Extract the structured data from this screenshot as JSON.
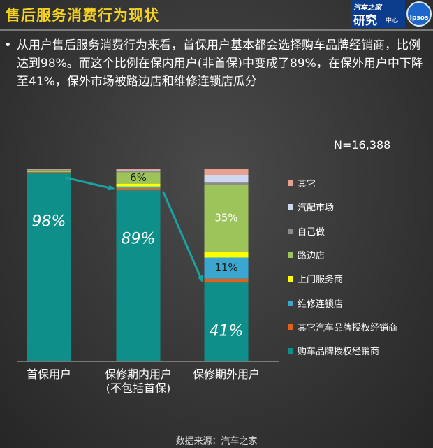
{
  "header": {
    "title": "售后服务消费行为现状",
    "logo_top": "汽车之家",
    "logo_main": "研究",
    "logo_sub": "中心",
    "brand": "Ipsos"
  },
  "bullet": "从用户售后服务消费行为来看，首保用户基本都会选择购车品牌经销商，比例达到98%。而这个比例在保内用户(非首保)中变成了89%，在保外用户中下降至41%，保外市场被路边店和维修连锁店瓜分",
  "sample_size": "N=16,388",
  "source": "数据来源：汽车之家",
  "chart_data": {
    "type": "bar",
    "stacked": true,
    "categories": [
      "首保用户",
      "保修期内用户\n(不包括首保)",
      "保修期外用户"
    ],
    "ylim": [
      0,
      100
    ],
    "series": [
      {
        "name": "购车品牌授权经销商",
        "color": "#0f8f8a",
        "values": [
          98,
          89,
          41
        ]
      },
      {
        "name": "其它汽车品牌授权经销商",
        "color": "#e0621a",
        "values": [
          0.5,
          1,
          2
        ]
      },
      {
        "name": "维修连锁店",
        "color": "#3ba6cf",
        "values": [
          0.2,
          1,
          11
        ]
      },
      {
        "name": "上门服务商",
        "color": "#ffff00",
        "values": [
          0.2,
          1.5,
          3
        ]
      },
      {
        "name": "路边店",
        "color": "#9dc35b",
        "values": [
          0.5,
          6,
          35
        ]
      },
      {
        "name": "自己做",
        "color": "#8c8c8c",
        "values": [
          0.3,
          0.5,
          1
        ]
      },
      {
        "name": "汽配市场",
        "color": "#cdd8ee",
        "values": [
          0.1,
          0.5,
          4
        ]
      },
      {
        "name": "其它",
        "color": "#e8a090",
        "values": [
          0.2,
          0.5,
          3
        ]
      }
    ],
    "data_labels": [
      {
        "category": 0,
        "series": 0,
        "text": "98%",
        "style": "italic-white"
      },
      {
        "category": 1,
        "series": 0,
        "text": "89%",
        "style": "italic-white"
      },
      {
        "category": 1,
        "series": 4,
        "text": "6%",
        "style": "dark"
      },
      {
        "category": 2,
        "series": 0,
        "text": "41%",
        "style": "italic-white"
      },
      {
        "category": 2,
        "series": 2,
        "text": "11%",
        "style": "dark"
      },
      {
        "category": 2,
        "series": 4,
        "text": "35%",
        "style": "white"
      }
    ],
    "arrows": [
      {
        "from_category": 0,
        "to_category": 1
      },
      {
        "from_category": 1,
        "to_category": 2
      }
    ],
    "legend_position": "right"
  }
}
